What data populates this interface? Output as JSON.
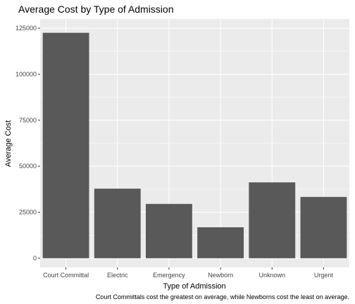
{
  "chart_data": {
    "type": "bar",
    "title": "Average Cost by Type of Admission",
    "xlabel": "Type of Admission",
    "ylabel": "Average Cost",
    "caption": "Court Committals cost the greatest on average, while Newborns cost the least on average.",
    "categories": [
      "Court Committal",
      "Electric",
      "Emergency",
      "Newborn",
      "Unknown",
      "Urgent"
    ],
    "values": [
      122500,
      37800,
      29500,
      16800,
      41200,
      33300
    ],
    "ylim": [
      -5000,
      130000
    ],
    "yticks": [
      0,
      25000,
      50000,
      75000,
      100000,
      125000
    ],
    "ytick_labels": [
      "0",
      "25000",
      "50000",
      "75000",
      "100000",
      "125000"
    ],
    "grid": true,
    "colors": {
      "bar": "#595959",
      "panel": "#ebebeb",
      "grid": "#ffffff"
    }
  }
}
